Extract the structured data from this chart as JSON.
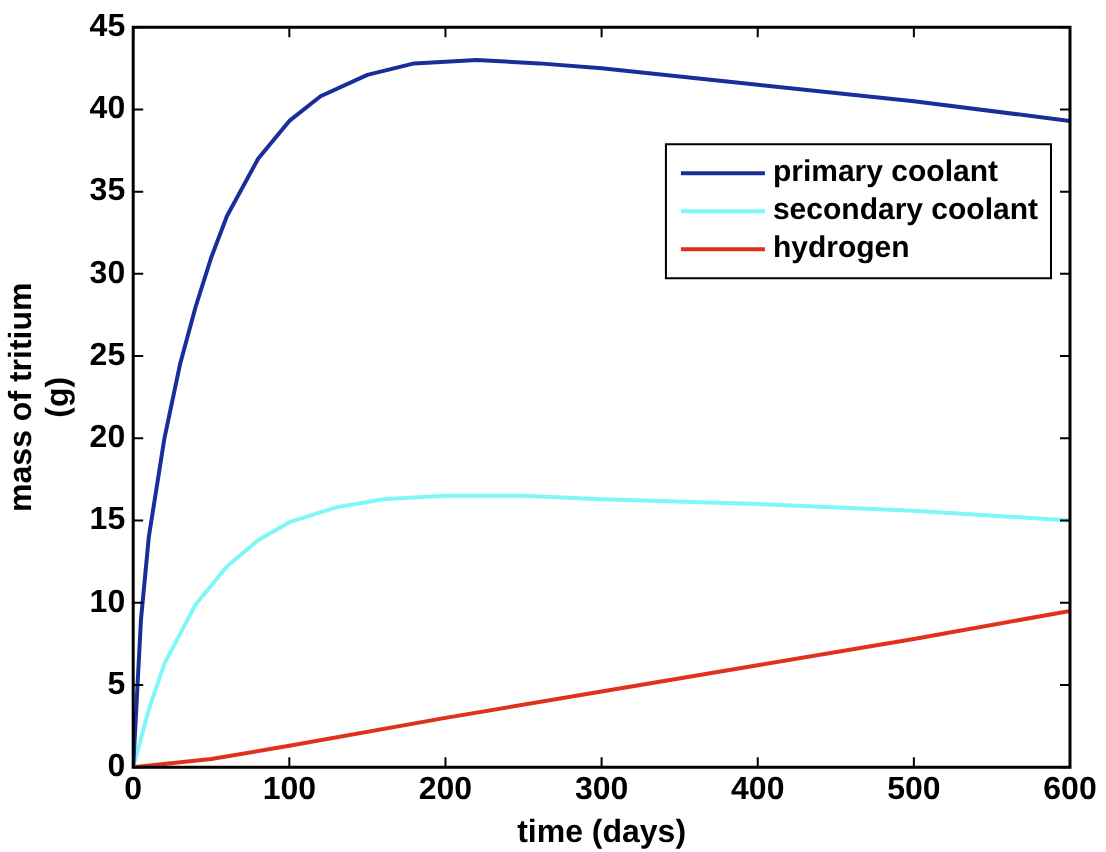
{
  "chart_data": {
    "type": "line",
    "xlabel": "time (days)",
    "ylabel": "mass of tritium\n(g)",
    "xlim": [
      0,
      600
    ],
    "xticks": [
      0,
      100,
      200,
      300,
      400,
      500,
      600
    ],
    "ylim": [
      0,
      45
    ],
    "yticks": [
      0,
      5,
      10,
      15,
      20,
      25,
      30,
      35,
      40,
      45
    ],
    "grid": false,
    "legend": "top right",
    "line_style": "solid",
    "marker": "none",
    "series": [
      {
        "name": "primary coolant",
        "color": "#1a2e9a",
        "x": [
          0,
          5,
          10,
          20,
          30,
          40,
          50,
          60,
          80,
          100,
          120,
          150,
          180,
          220,
          260,
          300,
          400,
          500,
          600
        ],
        "values": [
          0,
          9,
          14,
          20,
          24.5,
          28,
          31,
          33.5,
          37,
          39.3,
          40.8,
          42.1,
          42.8,
          43,
          42.8,
          42.5,
          41.5,
          40.5,
          39.3
        ]
      },
      {
        "name": "secondary coolant",
        "color": "#7ff7f7",
        "x": [
          0,
          10,
          20,
          40,
          60,
          80,
          100,
          130,
          160,
          200,
          250,
          300,
          400,
          500,
          600
        ],
        "values": [
          0,
          3.5,
          6.3,
          9.9,
          12.2,
          13.8,
          14.9,
          15.8,
          16.3,
          16.5,
          16.5,
          16.3,
          16,
          15.6,
          15
        ]
      },
      {
        "name": "hydrogen",
        "color": "#e0301e",
        "x": [
          0,
          50,
          100,
          200,
          300,
          400,
          500,
          600
        ],
        "values": [
          0,
          0.5,
          1.3,
          3,
          4.6,
          6.2,
          7.8,
          9.5
        ]
      }
    ]
  }
}
